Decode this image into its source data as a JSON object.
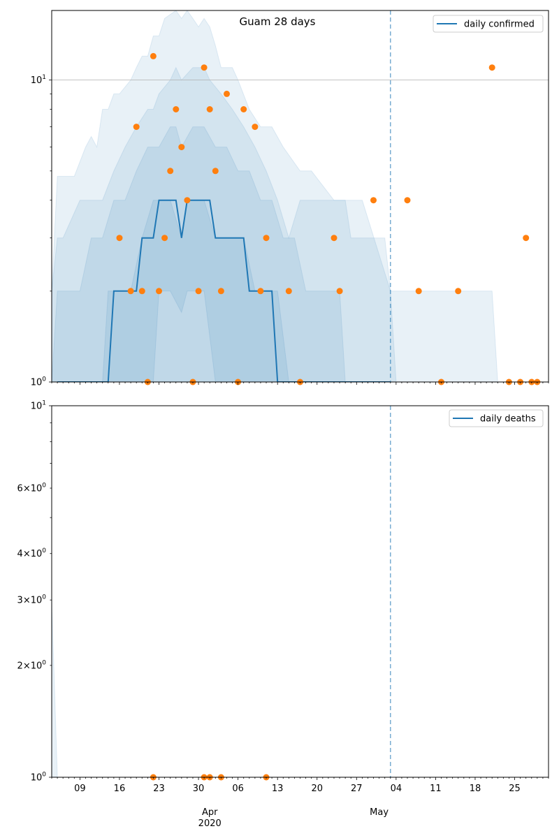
{
  "chart_data": [
    {
      "type": "line",
      "title": "Guam 28 days",
      "yscale": "log",
      "ylim": [
        1,
        17
      ],
      "xlim": [
        "2020-03-04",
        "2020-05-31"
      ],
      "y_ticks": [
        {
          "value": 10,
          "label": "10",
          "exp": "1"
        },
        {
          "value": 1,
          "label": "10",
          "exp": "0"
        }
      ],
      "grid_y": [
        10
      ],
      "legend": {
        "position": "top-right",
        "entries": [
          {
            "label": "daily confirmed",
            "color": "#1f77b4"
          }
        ]
      },
      "vline_date": "2020-05-03",
      "colors": {
        "line": "#1f77b4",
        "points": "#ff7f0e",
        "band": "#1f77b4"
      },
      "bands": [
        {
          "x": [
            "2020-03-04",
            "2020-03-05",
            "2020-03-08",
            "2020-03-10",
            "2020-03-11",
            "2020-03-12",
            "2020-03-13",
            "2020-03-14",
            "2020-03-15",
            "2020-03-16",
            "2020-03-18",
            "2020-03-19",
            "2020-03-20",
            "2020-03-21",
            "2020-03-22",
            "2020-03-23",
            "2020-03-24",
            "2020-03-26",
            "2020-03-27",
            "2020-03-28",
            "2020-03-29",
            "2020-03-30",
            "2020-03-31",
            "2020-04-01",
            "2020-04-02",
            "2020-04-03",
            "2020-04-05",
            "2020-04-06",
            "2020-04-08",
            "2020-04-10",
            "2020-04-12",
            "2020-04-14",
            "2020-04-17",
            "2020-04-19",
            "2020-04-23",
            "2020-04-28",
            "2020-05-03",
            "2020-05-04",
            "2020-05-21",
            "2020-05-22"
          ],
          "low": [
            1,
            1,
            1,
            1,
            1,
            1,
            1,
            1,
            1,
            1,
            1,
            1,
            1,
            1,
            1,
            1,
            1,
            1,
            1,
            1,
            1,
            1,
            1,
            1,
            1,
            1,
            1,
            1,
            1,
            1,
            1,
            1,
            1,
            1,
            1,
            1,
            1,
            1,
            1,
            1
          ],
          "high": [
            2,
            4.8,
            4.8,
            6,
            6.5,
            6,
            8,
            8,
            9,
            9,
            10,
            11,
            12,
            12,
            14,
            14,
            16,
            17,
            16,
            17,
            16,
            15,
            16,
            15,
            13,
            11,
            11,
            10,
            8,
            7,
            7,
            6,
            5,
            5,
            4,
            4,
            2,
            2,
            2,
            1
          ]
        },
        {
          "x": [
            "2020-03-04",
            "2020-03-05",
            "2020-03-06",
            "2020-03-09",
            "2020-03-13",
            "2020-03-15",
            "2020-03-17",
            "2020-03-19",
            "2020-03-21",
            "2020-03-22",
            "2020-03-23",
            "2020-03-25",
            "2020-03-26",
            "2020-03-27",
            "2020-03-29",
            "2020-03-31",
            "2020-04-01",
            "2020-04-03",
            "2020-04-05",
            "2020-04-07",
            "2020-04-09",
            "2020-04-11",
            "2020-04-13",
            "2020-04-15",
            "2020-04-17",
            "2020-04-19",
            "2020-04-25",
            "2020-04-26",
            "2020-05-02",
            "2020-05-03",
            "2020-05-04"
          ],
          "low": [
            1,
            1,
            1,
            1,
            1,
            1,
            1,
            1,
            1,
            1,
            1,
            1,
            1,
            1,
            1,
            1,
            1,
            1,
            1,
            1,
            1,
            1,
            1,
            1,
            1,
            1,
            1,
            1,
            1,
            1,
            1
          ],
          "high": [
            2,
            3,
            3,
            4,
            4,
            5,
            6,
            7,
            8,
            8,
            9,
            10,
            11,
            10,
            11,
            11,
            10,
            9,
            8,
            7,
            6,
            5,
            4,
            3,
            4,
            4,
            4,
            3,
            3,
            2,
            1
          ]
        },
        {
          "x": [
            "2020-03-04",
            "2020-03-05",
            "2020-03-09",
            "2020-03-11",
            "2020-03-13",
            "2020-03-15",
            "2020-03-17",
            "2020-03-19",
            "2020-03-21",
            "2020-03-23",
            "2020-03-25",
            "2020-03-26",
            "2020-03-27",
            "2020-03-29",
            "2020-03-31",
            "2020-04-02",
            "2020-04-04",
            "2020-04-06",
            "2020-04-08",
            "2020-04-10",
            "2020-04-12",
            "2020-04-14",
            "2020-04-16",
            "2020-04-18",
            "2020-04-24",
            "2020-04-25"
          ],
          "low": [
            1,
            1,
            1,
            1,
            1,
            1,
            1,
            1,
            1,
            1,
            1,
            1,
            1,
            1,
            1,
            1,
            1,
            1,
            1,
            1,
            1,
            1,
            1,
            1,
            1,
            1
          ],
          "high": [
            1,
            2,
            2,
            3,
            3,
            4,
            4,
            5,
            6,
            6,
            7,
            7,
            6,
            7,
            7,
            6,
            6,
            5,
            5,
            4,
            4,
            3,
            3,
            2,
            2,
            1
          ]
        },
        {
          "x": [
            "2020-03-13",
            "2020-03-14",
            "2020-03-18",
            "2020-03-20",
            "2020-03-22",
            "2020-03-23",
            "2020-03-25",
            "2020-03-27",
            "2020-03-28",
            "2020-03-29",
            "2020-03-31",
            "2020-04-02",
            "2020-04-03",
            "2020-04-05",
            "2020-04-07",
            "2020-04-09",
            "2020-04-11",
            "2020-04-13",
            "2020-04-15"
          ],
          "low": [
            1,
            1,
            1,
            1,
            1,
            2,
            2,
            1.7,
            2,
            2,
            2,
            1,
            1,
            1,
            1,
            1,
            1,
            1,
            1
          ],
          "high": [
            1,
            2,
            2,
            3,
            4,
            4,
            4,
            3,
            4,
            4,
            4,
            3,
            3,
            3,
            3,
            2,
            2,
            2,
            1
          ]
        }
      ],
      "line": {
        "name": "daily confirmed",
        "x": [
          "2020-03-05",
          "2020-03-14",
          "2020-03-15",
          "2020-03-19",
          "2020-03-20",
          "2020-03-22",
          "2020-03-23",
          "2020-03-26",
          "2020-03-27",
          "2020-03-28",
          "2020-04-01",
          "2020-04-02",
          "2020-04-07",
          "2020-04-08",
          "2020-04-12",
          "2020-04-13",
          "2020-05-03"
        ],
        "y": [
          1,
          1,
          2,
          2,
          3,
          3,
          4,
          4,
          3,
          4,
          4,
          3,
          3,
          2,
          2,
          1,
          1
        ]
      },
      "points": {
        "x": [
          "2020-03-16",
          "2020-03-18",
          "2020-03-19",
          "2020-03-20",
          "2020-03-21",
          "2020-03-22",
          "2020-03-23",
          "2020-03-24",
          "2020-03-25",
          "2020-03-26",
          "2020-03-27",
          "2020-03-28",
          "2020-03-29",
          "2020-03-30",
          "2020-03-31",
          "2020-04-01",
          "2020-04-02",
          "2020-04-03",
          "2020-04-04",
          "2020-04-06",
          "2020-04-07",
          "2020-04-09",
          "2020-04-10",
          "2020-04-11",
          "2020-04-15",
          "2020-04-17",
          "2020-04-23",
          "2020-04-24",
          "2020-04-30",
          "2020-05-06",
          "2020-05-08",
          "2020-05-12",
          "2020-05-15",
          "2020-05-21",
          "2020-05-24",
          "2020-05-26",
          "2020-05-27",
          "2020-05-28",
          "2020-05-29"
        ],
        "y": [
          3,
          2,
          7,
          2,
          1,
          12,
          2,
          3,
          5,
          8,
          6,
          4,
          1,
          2,
          11,
          8,
          5,
          2,
          9,
          1,
          8,
          7,
          2,
          3,
          2,
          1,
          3,
          2,
          4,
          4,
          2,
          1,
          2,
          11,
          1,
          1,
          3,
          1,
          1
        ]
      }
    },
    {
      "type": "line",
      "yscale": "log",
      "ylim": [
        1,
        10
      ],
      "xlim": [
        "2020-03-04",
        "2020-05-31"
      ],
      "y_ticks": [
        {
          "value": 10,
          "label": "10",
          "exp": "1"
        },
        {
          "value": 6,
          "label": "6×10",
          "exp": "0"
        },
        {
          "value": 4,
          "label": "4×10",
          "exp": "0"
        },
        {
          "value": 3,
          "label": "3×10",
          "exp": "0"
        },
        {
          "value": 2,
          "label": "2×10",
          "exp": "0"
        },
        {
          "value": 1,
          "label": "10",
          "exp": "0"
        }
      ],
      "legend": {
        "position": "top-right",
        "entries": [
          {
            "label": "daily deaths",
            "color": "#1f77b4"
          }
        ]
      },
      "vline_date": "2020-05-03",
      "colors": {
        "line": "#1f77b4",
        "points": "#ff7f0e",
        "band": "#1f77b4"
      },
      "bands": [
        {
          "x": [
            "2020-03-04",
            "2020-03-05"
          ],
          "low": [
            1,
            1
          ],
          "high": [
            3,
            1
          ]
        }
      ],
      "points": {
        "x": [
          "2020-03-22",
          "2020-03-31",
          "2020-04-01",
          "2020-04-03",
          "2020-04-11"
        ],
        "y": [
          1,
          1,
          1,
          1,
          1
        ]
      },
      "x_ticks": [
        "09",
        "16",
        "23",
        "30",
        "06",
        "13",
        "20",
        "27",
        "04",
        "11",
        "18",
        "25"
      ],
      "x_tick_dates": [
        "2020-03-09",
        "2020-03-16",
        "2020-03-23",
        "2020-03-30",
        "2020-04-06",
        "2020-04-13",
        "2020-04-20",
        "2020-04-27",
        "2020-05-04",
        "2020-05-11",
        "2020-05-18",
        "2020-05-25"
      ],
      "month_labels": [
        {
          "label": "Apr",
          "date": "2020-04-01"
        },
        {
          "label": "May",
          "date": "2020-05-01"
        }
      ],
      "year_label": {
        "label": "2020",
        "date": "2020-04-01"
      }
    }
  ]
}
